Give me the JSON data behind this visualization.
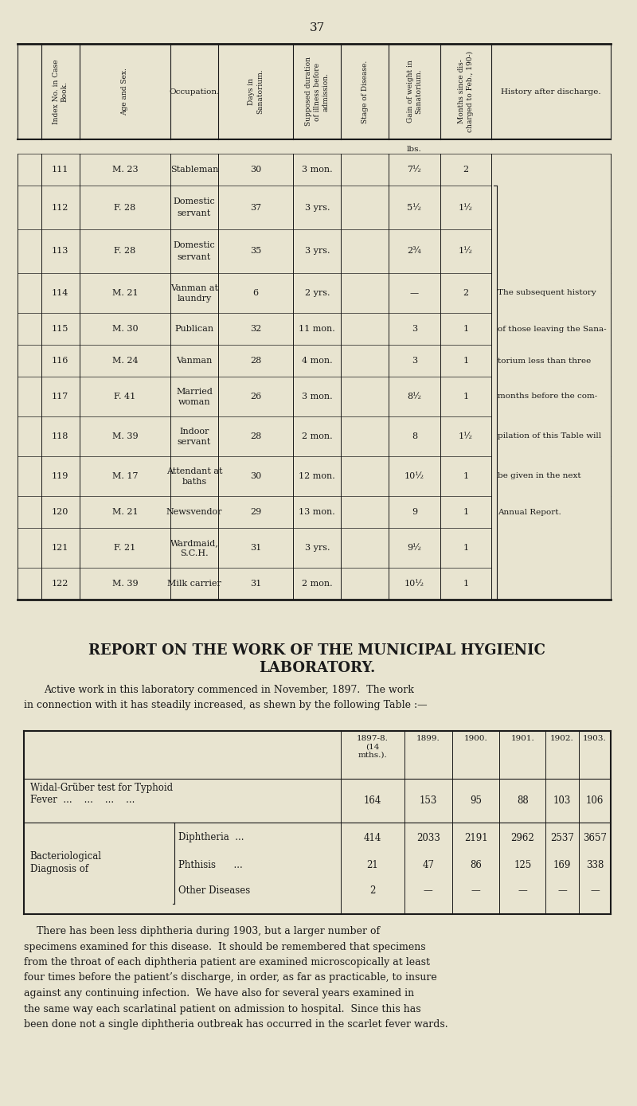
{
  "page_number": "37",
  "bg_color": "#e8e4d0",
  "text_color": "#1a1a1a",
  "table1": {
    "headers": [
      "Index No. in Case\nBook.",
      "Age and Sex.",
      "Occupation.",
      "Days in\nSanatorium.",
      "Supposed duration\nof illness before\nadmission.",
      "Stage of Disease.",
      "Gain of weight in\nSanatorium.",
      "Months since dis-\ncharged to Feb., 190-)",
      "History after discharge."
    ],
    "rows": [
      [
        "111",
        "M. 23",
        "Stableman",
        "30",
        "3 mon.",
        "",
        "7½",
        "2",
        ""
      ],
      [
        "112",
        "F. 28",
        "Domestic\nservant",
        "37",
        "3 yrs.",
        "",
        "5½",
        "1½",
        ""
      ],
      [
        "113",
        "F. 28",
        "Domestic\nservant",
        "35",
        "3 yrs.",
        "",
        "2¾",
        "1½",
        ""
      ],
      [
        "114",
        "M. 21",
        "Vanman at\nlaundry",
        "6",
        "2 yrs.",
        "",
        "—",
        "2",
        "The subsequent history"
      ],
      [
        "115",
        "M. 30",
        "Publican",
        "32",
        "11 mon.",
        "",
        "3",
        "1",
        "of those leaving the Sana-"
      ],
      [
        "116",
        "M. 24",
        "Vanman",
        "28",
        "4 mon.",
        "",
        "3",
        "1",
        "torium less than three"
      ],
      [
        "117",
        "F. 41",
        "Married\nwoman",
        "26",
        "3 mon.",
        "",
        "8½",
        "1",
        "months before the com-"
      ],
      [
        "118",
        "M. 39",
        "Indoor\nservant",
        "28",
        "2 mon.",
        "",
        "8",
        "1½",
        "pilation of this Table will"
      ],
      [
        "119",
        "M. 17",
        "Attendant at\nbaths",
        "30",
        "12 mon.",
        "",
        "10½",
        "1",
        "be given in the next"
      ],
      [
        "120",
        "M. 21",
        "Newsvendor",
        "29",
        "13 mon.",
        "",
        "9",
        "1",
        "Annual Report."
      ],
      [
        "121",
        "F. 21",
        "Wardmaid,\nS.C.H.",
        "31",
        "3 yrs.",
        "",
        "9½",
        "1",
        ""
      ],
      [
        "122",
        "M. 39",
        "Milk carrier",
        "31",
        "2 mon.",
        "",
        "10½",
        "1",
        ""
      ]
    ],
    "weight_unit": "lbs."
  },
  "section_title": "REPORT ON THE WORK OF THE MUNICIPAL HYGIENIC\nLABORATORY.",
  "intro_text": "Active work in this laboratory commenced in November, 1897.  The work\nin connection with it has steadily increased, as shewn by the following Table :—",
  "table2": {
    "col_headers": [
      "1897-8.\n(14\nmths.).",
      "1899.",
      "1900.",
      "1901.",
      "1902.",
      "1903."
    ],
    "rows": [
      {
        "label": "Widal-Grüber test for Typhoid\nFever  ...    ...    ...    ...",
        "values": [
          "164",
          "153",
          "95",
          "88",
          "103",
          "106"
        ]
      },
      {
        "label": "Bacteriological\nDiagnosis of",
        "sub_labels": [
          "Diphtheria  ...",
          "Phthisis      ...",
          "Other Diseases"
        ],
        "values": [
          [
            "414",
            "2033",
            "2191",
            "2962",
            "2537",
            "3657"
          ],
          [
            "21",
            "47",
            "86",
            "125",
            "169",
            "338"
          ],
          [
            "2",
            "—",
            "—",
            "—",
            "—",
            "—"
          ]
        ]
      }
    ]
  },
  "closing_text": "There has been less diphtheria during 1903, but a larger number of\nspecimens examined for this disease.  It should be remembered that specimens\nfrom the throat of each diphtheria patient are examined microscopically at least\nfour times before the patient’s discharge, in order, as far as practicable, to insure\nagainst any continuing infection.  We have also for several years examined in\nthe same way each scarlatinal patient on admission to hospital.  Since this has\nbeen done not a single diphtheria outbreak has occurred in the scarlet fever wards."
}
